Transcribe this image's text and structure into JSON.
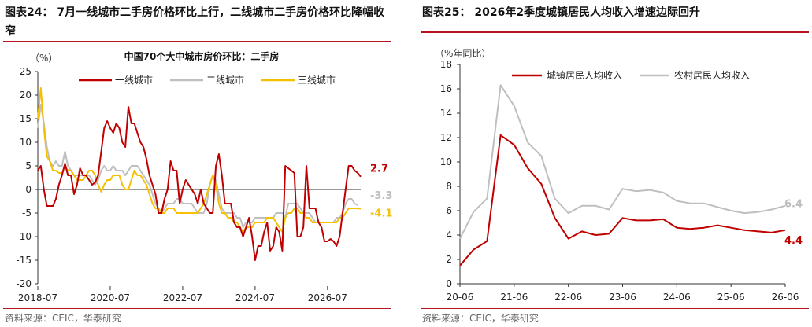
{
  "left": {
    "figure_title": "图表24： 7月一线城市二手房价格环比上行，二线城市二手房价格环比降幅收窄",
    "source": "资料来源：CEIC，华泰研究",
    "chart_data": {
      "type": "line",
      "title": "中国70个大中城市房价环比：二手房",
      "ylabel": "（%）",
      "xlabel": "",
      "ylim": [
        -20,
        25
      ],
      "yticks": [
        -20,
        -15,
        -10,
        -5,
        0,
        5,
        10,
        15,
        20,
        25
      ],
      "xticks": [
        "2018-07",
        "2020-07",
        "2022-07",
        "2024-07",
        "2026-07"
      ],
      "x_start": "2018-07",
      "grid": false,
      "legend": "top",
      "series": [
        {
          "name": "一线城市",
          "color": "#c00000",
          "values": [
            4,
            5,
            0,
            -3.5,
            -3.5,
            -3.5,
            -2,
            1,
            3,
            5.5,
            3,
            3,
            -1,
            1,
            4.5,
            3,
            3,
            2,
            1,
            1.5,
            3,
            8,
            13,
            14.5,
            13,
            12,
            14,
            13,
            10,
            9,
            17.5,
            14,
            14,
            12,
            10,
            9,
            6.5,
            3,
            1,
            -1,
            -5,
            -5,
            -2,
            0,
            6,
            4,
            4,
            -3,
            0,
            2,
            1,
            0,
            -1,
            -3,
            0,
            -3,
            -4,
            -5,
            -5,
            5,
            7.5,
            3,
            -3,
            -3,
            -3,
            -7,
            -8,
            -8,
            -10,
            -8,
            -6,
            -10,
            -15,
            -12,
            -12,
            -9,
            -7,
            -13,
            -12,
            -8,
            -9,
            -13,
            5,
            4.5,
            4,
            3.5,
            -10,
            -10,
            -8,
            5,
            -4,
            -4,
            -4,
            -7,
            -8,
            -11,
            -11,
            -10.5,
            -11,
            -12,
            -10,
            -5,
            0,
            5,
            5,
            4,
            3.5,
            2.7
          ]
        },
        {
          "name": "二线城市",
          "color": "#bfbfbf",
          "values": [
            13,
            18,
            14,
            9,
            6,
            5,
            6,
            5,
            5,
            8,
            5,
            4,
            3,
            3,
            3,
            3,
            3,
            3,
            2,
            1,
            2,
            4,
            5,
            4,
            4,
            5,
            4,
            4,
            4,
            3,
            4,
            5,
            5,
            5,
            4,
            3,
            2,
            1,
            -1,
            -3,
            -4,
            -5,
            -4,
            -3,
            -3,
            -3,
            -2,
            -2,
            -3,
            -3,
            -3,
            -3,
            -4,
            -5,
            -5,
            -5,
            -3,
            1,
            3,
            2,
            -1,
            -4,
            -5,
            -5,
            -5,
            -5,
            -6,
            -6,
            -8,
            -7,
            -7,
            -7,
            -6,
            -6,
            -6,
            -6,
            -6,
            -6,
            -6,
            -5,
            -5,
            -5,
            -6,
            -3,
            -3,
            -3,
            -3,
            -4,
            -5,
            -5,
            -5,
            -6,
            -7,
            -7,
            -7,
            -7,
            -7,
            -7,
            -7,
            -6,
            -6,
            -5,
            -3,
            -2,
            -2,
            -3,
            -3.3
          ]
        },
        {
          "name": "三线城市",
          "color": "#f5c000",
          "values": [
            15,
            21.5,
            13,
            7,
            6,
            4,
            4,
            3.5,
            3.5,
            5,
            4,
            4,
            3,
            2,
            2,
            2,
            3,
            4,
            4,
            3,
            1,
            -0.5,
            1,
            2,
            2,
            3,
            3,
            3,
            1,
            0,
            0,
            2,
            4,
            3,
            3,
            2,
            1,
            -1,
            -3,
            -4,
            -4,
            -5,
            -5,
            -4,
            -4,
            -4,
            -5,
            -5,
            -5,
            -5,
            -5,
            -5,
            -5,
            -5,
            -4,
            -3,
            -1,
            1,
            3,
            1,
            -3,
            -5,
            -5,
            -6,
            -6,
            -7,
            -7,
            -8,
            -9,
            -8,
            -8,
            -8,
            -7,
            -7,
            -7,
            -7,
            -6,
            -6,
            -6,
            -7,
            -8,
            -9,
            -6,
            -5,
            -5,
            -4,
            -4,
            -5,
            -5,
            -6,
            -6,
            -7,
            -7,
            -7,
            -7,
            -7,
            -7,
            -7,
            -7,
            -7,
            -6,
            -6,
            -5,
            -4,
            -4,
            -4,
            -4,
            -4.1
          ]
        }
      ],
      "end_labels": [
        "2.7",
        "-3.3",
        "-4.1"
      ]
    }
  },
  "right": {
    "figure_title": "图表25： 2026年2季度城镇居民人均收入增速边际回升",
    "source": "资料来源：CEIC，华泰研究",
    "chart_data": {
      "type": "line",
      "title": "",
      "ylabel": "（%年同比）",
      "xlabel": "",
      "ylim": [
        0,
        18
      ],
      "yticks": [
        0,
        2,
        4,
        6,
        8,
        10,
        12,
        14,
        16,
        18
      ],
      "x": [
        "20-06",
        "20-09",
        "20-12",
        "21-03",
        "21-06",
        "21-09",
        "21-12",
        "22-03",
        "22-06",
        "22-09",
        "22-12",
        "23-03",
        "23-06",
        "23-09",
        "23-12",
        "24-03",
        "24-06",
        "24-09",
        "24-12",
        "25-03",
        "25-06",
        "25-09",
        "25-12",
        "26-03",
        "26-06"
      ],
      "xticks": [
        "20-06",
        "21-06",
        "22-06",
        "23-06",
        "24-06",
        "25-06",
        "26-06"
      ],
      "grid": false,
      "legend": "top",
      "series": [
        {
          "name": "城镇居民人均收入",
          "color": "#c00000",
          "values": [
            1.5,
            2.8,
            3.5,
            12.2,
            11.4,
            9.5,
            8.2,
            5.4,
            3.7,
            4.3,
            4.0,
            4.1,
            5.4,
            5.2,
            5.2,
            5.3,
            4.6,
            4.5,
            4.6,
            4.8,
            4.6,
            4.4,
            4.3,
            4.2,
            4.4
          ]
        },
        {
          "name": "农村居民人均收入",
          "color": "#bfbfbf",
          "values": [
            3.7,
            5.9,
            7.0,
            16.3,
            14.6,
            11.6,
            10.5,
            7.0,
            5.8,
            6.4,
            6.4,
            6.1,
            7.8,
            7.6,
            7.7,
            7.5,
            6.8,
            6.6,
            6.6,
            6.3,
            6.0,
            5.8,
            5.9,
            6.1,
            6.4
          ]
        }
      ],
      "end_labels": [
        "4.4",
        "6.4"
      ]
    }
  }
}
